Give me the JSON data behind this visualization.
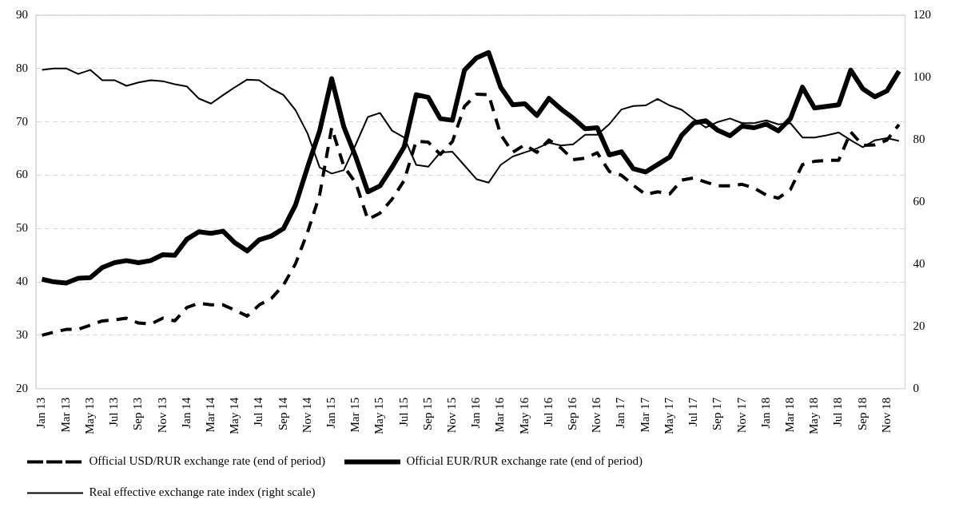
{
  "chart_data": {
    "type": "line",
    "categories": [
      "Jan 13",
      null,
      "Mar 13",
      null,
      "May 13",
      null,
      "Jul 13",
      null,
      "Sep 13",
      null,
      "Nov 13",
      null,
      "Jan 14",
      null,
      "Mar 14",
      null,
      "May 14",
      null,
      "Jul 14",
      null,
      "Sep 14",
      null,
      "Nov 14",
      null,
      "Jan 15",
      null,
      "Mar 15",
      null,
      "May 15",
      null,
      "Jul 15",
      null,
      "Sep 15",
      null,
      "Nov 15",
      null,
      "Jan 16",
      null,
      "Mar 16",
      null,
      "May 16",
      null,
      "Jul 16",
      null,
      "Sep 16",
      null,
      "Nov 16",
      null,
      "Jan 17",
      null,
      "Mar 17",
      null,
      "May 17",
      null,
      "Jul 17",
      null,
      "Sep 17",
      null,
      "Nov 17",
      null,
      "Jan 18",
      null,
      "Mar 18",
      null,
      "May 18",
      null,
      "Jul 18",
      null,
      "Sep 18",
      null,
      "Nov 18",
      null
    ],
    "series": [
      {
        "name": "Official USD/RUR exchange rate (end of period)",
        "color": "#000000",
        "line_style": "dashed",
        "values": [
          30.0,
          30.6,
          31.1,
          31.1,
          31.9,
          32.7,
          32.9,
          33.2,
          32.3,
          32.1,
          33.2,
          32.7,
          35.2,
          36.0,
          35.7,
          35.7,
          34.7,
          33.6,
          35.7,
          36.9,
          39.4,
          43.4,
          49.3,
          56.3,
          68.9,
          61.7,
          58.5,
          51.7,
          52.9,
          55.5,
          59.0,
          66.4,
          66.2,
          63.9,
          66.3,
          72.9,
          75.2,
          75.1,
          67.6,
          64.3,
          65.7,
          64.3,
          66.6,
          65.1,
          62.9,
          63.2,
          64.2,
          60.7,
          60.0,
          58.1,
          56.4,
          56.9,
          56.5,
          59.1,
          59.5,
          58.7,
          58.0,
          58.0,
          58.3,
          57.6,
          56.3,
          55.7,
          57.3,
          62.0,
          62.6,
          62.8,
          62.8,
          68.1,
          65.6,
          65.7,
          66.6,
          69.5
        ]
      },
      {
        "name": "Official EUR/RUR exchange rate (end of period)",
        "color": "#000000",
        "line_style": "solid",
        "values": [
          40.5,
          40.0,
          39.8,
          40.7,
          40.8,
          42.7,
          43.6,
          44.0,
          43.6,
          44.0,
          45.1,
          45.0,
          48.0,
          49.4,
          49.1,
          49.5,
          47.3,
          45.8,
          47.9,
          48.6,
          50.0,
          54.4,
          61.5,
          68.3,
          78.1,
          69.1,
          63.4,
          56.9,
          58.0,
          61.5,
          65.3,
          75.1,
          74.6,
          70.6,
          70.3,
          79.7,
          82.0,
          83.0,
          76.5,
          73.2,
          73.4,
          71.2,
          74.4,
          72.4,
          70.7,
          68.7,
          68.9,
          63.8,
          64.4,
          61.2,
          60.6,
          62.0,
          63.4,
          67.5,
          69.8,
          70.2,
          68.4,
          67.4,
          69.2,
          68.9,
          69.6,
          68.3,
          70.6,
          76.5,
          72.6,
          72.9,
          73.2,
          79.7,
          76.2,
          74.7,
          75.8,
          79.5
        ]
      },
      {
        "name": "Real effective exchange rate index (right scale)",
        "color": "#000000",
        "line_style": "solid",
        "axis": "y2",
        "values": [
          102.4,
          102.9,
          102.9,
          101.1,
          102.4,
          99.1,
          99.1,
          97.3,
          98.4,
          99.1,
          98.8,
          97.8,
          97.1,
          93.2,
          91.6,
          94.3,
          96.9,
          99.3,
          99.1,
          96.4,
          94.4,
          89.5,
          82.0,
          71.1,
          69.1,
          70.2,
          78.5,
          87.3,
          88.6,
          82.9,
          80.7,
          71.9,
          71.3,
          75.9,
          76.1,
          71.7,
          67.3,
          66.2,
          71.9,
          74.6,
          75.9,
          77.2,
          79.0,
          78.1,
          78.5,
          81.6,
          81.6,
          85.0,
          89.7,
          90.8,
          91.0,
          93.1,
          91.0,
          89.6,
          86.6,
          83.9,
          85.7,
          86.8,
          85.3,
          85.3,
          86.2,
          84.9,
          85.3,
          80.7,
          80.7,
          81.4,
          82.3,
          79.8,
          77.6,
          79.8,
          80.5,
          79.6
        ]
      }
    ],
    "ylim": [
      20,
      90
    ],
    "yticks": [
      20,
      30,
      40,
      50,
      60,
      70,
      80,
      90
    ],
    "y2lim": [
      0,
      120
    ],
    "y2ticks": [
      0,
      20,
      40,
      60,
      80,
      100,
      120
    ],
    "grid": "y",
    "legend": "bottom",
    "marker": "none"
  }
}
